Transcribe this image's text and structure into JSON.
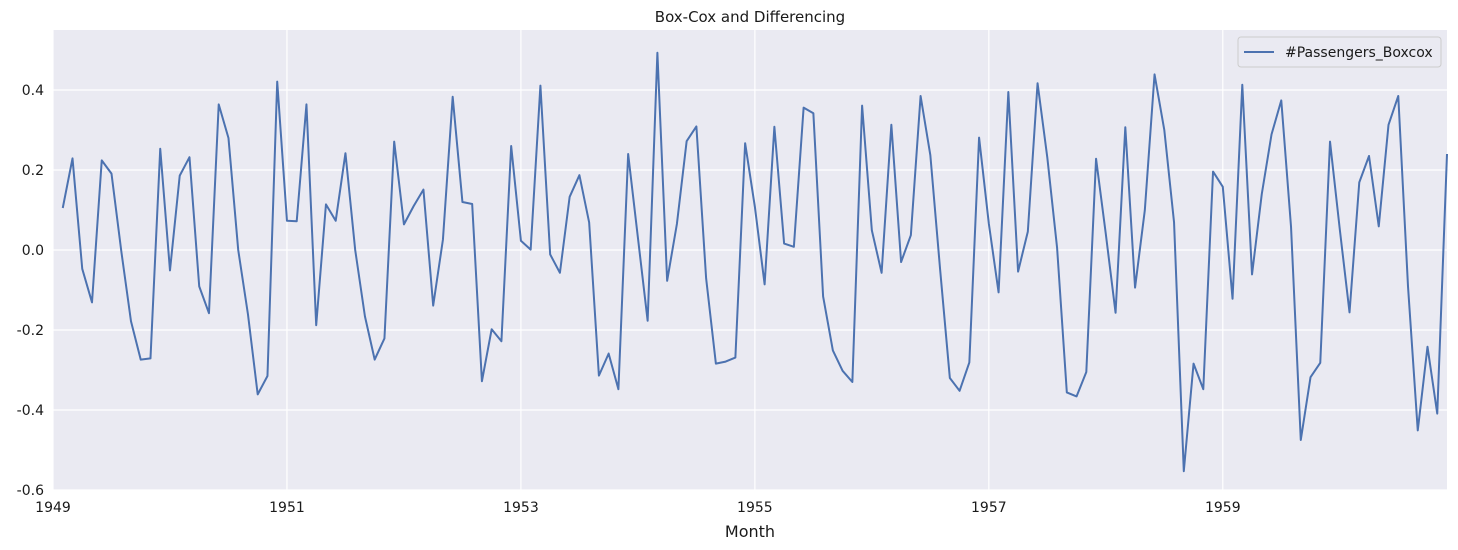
{
  "chart_data": {
    "type": "line",
    "title": "Box-Cox and Differencing",
    "xlabel": "Month",
    "ylabel": "",
    "xlim": [
      "1949-01",
      "1960-12"
    ],
    "ylim": [
      -0.6,
      0.55
    ],
    "xticks": [
      "1949",
      "1951",
      "1953",
      "1955",
      "1957",
      "1959"
    ],
    "yticks": [
      "-0.6",
      "-0.4",
      "-0.2",
      "0.0",
      "0.2",
      "0.4"
    ],
    "grid": true,
    "legend_position": "top-right",
    "series": [
      {
        "name": "#Passengers_Boxcox",
        "color": "#4c72b0",
        "x": [
          "1949-02",
          "1949-03",
          "1949-04",
          "1949-05",
          "1949-06",
          "1949-07",
          "1949-08",
          "1949-09",
          "1949-10",
          "1949-11",
          "1949-12",
          "1950-01",
          "1950-02",
          "1950-03",
          "1950-04",
          "1950-05",
          "1950-06",
          "1950-07",
          "1950-08",
          "1950-09",
          "1950-10",
          "1950-11",
          "1950-12",
          "1951-01",
          "1951-02",
          "1951-03",
          "1951-04",
          "1951-05",
          "1951-06",
          "1951-07",
          "1951-08",
          "1951-09",
          "1951-10",
          "1951-11",
          "1951-12",
          "1952-01",
          "1952-02",
          "1952-03",
          "1952-04",
          "1952-05",
          "1952-06",
          "1952-07",
          "1952-08",
          "1952-09",
          "1952-10",
          "1952-11",
          "1952-12",
          "1953-01",
          "1953-02",
          "1953-03",
          "1953-04",
          "1953-05",
          "1953-06",
          "1953-07",
          "1953-08",
          "1953-09",
          "1953-10",
          "1953-11",
          "1953-12",
          "1954-01",
          "1954-02",
          "1954-03",
          "1954-04",
          "1954-05",
          "1954-06",
          "1954-07",
          "1954-08",
          "1954-09",
          "1954-10",
          "1954-11",
          "1954-12",
          "1955-01",
          "1955-02",
          "1955-03",
          "1955-04",
          "1955-05",
          "1955-06",
          "1955-07",
          "1955-08",
          "1955-09",
          "1955-10",
          "1955-11",
          "1955-12",
          "1956-01",
          "1956-02",
          "1956-03",
          "1956-04",
          "1956-05",
          "1956-06",
          "1956-07",
          "1956-08",
          "1956-09",
          "1956-10",
          "1956-11",
          "1956-12",
          "1957-01",
          "1957-02",
          "1957-03",
          "1957-04",
          "1957-05",
          "1957-06",
          "1957-07",
          "1957-08",
          "1957-09",
          "1957-10",
          "1957-11",
          "1957-12",
          "1958-01",
          "1958-02",
          "1958-03",
          "1958-04",
          "1958-05",
          "1958-06",
          "1958-07",
          "1958-08",
          "1958-09",
          "1958-10",
          "1958-11",
          "1958-12",
          "1959-01",
          "1959-02",
          "1959-03",
          "1959-04",
          "1959-05",
          "1959-06",
          "1959-07",
          "1959-08",
          "1959-09",
          "1959-10",
          "1959-11",
          "1959-12",
          "1960-01",
          "1960-02",
          "1960-03",
          "1960-04",
          "1960-05",
          "1960-06",
          "1960-07",
          "1960-08",
          "1960-09",
          "1960-10",
          "1960-11",
          "1960-12"
        ],
        "values": [
          0.105,
          0.229,
          -0.047,
          -0.131,
          0.224,
          0.191,
          -0.002,
          -0.178,
          -0.274,
          -0.271,
          0.253,
          -0.051,
          0.186,
          0.232,
          -0.091,
          -0.158,
          0.364,
          0.28,
          0.0,
          -0.161,
          -0.361,
          -0.315,
          0.421,
          0.073,
          0.072,
          0.364,
          -0.188,
          0.114,
          0.073,
          0.242,
          0.0,
          -0.166,
          -0.274,
          -0.221,
          0.271,
          0.064,
          0.11,
          0.151,
          -0.139,
          0.026,
          0.383,
          0.12,
          0.115,
          -0.328,
          -0.198,
          -0.228,
          0.26,
          0.023,
          0.001,
          0.411,
          -0.011,
          -0.057,
          0.133,
          0.187,
          0.069,
          -0.314,
          -0.259,
          -0.348,
          0.24,
          0.031,
          -0.177,
          0.493,
          -0.077,
          0.065,
          0.272,
          0.309,
          -0.071,
          -0.284,
          -0.279,
          -0.269,
          0.267,
          0.108,
          -0.086,
          0.308,
          0.016,
          0.008,
          0.356,
          0.342,
          -0.116,
          -0.251,
          -0.302,
          -0.33,
          0.361,
          0.049,
          -0.057,
          0.313,
          -0.03,
          0.037,
          0.385,
          0.237,
          -0.048,
          -0.32,
          -0.352,
          -0.281,
          0.281,
          0.066,
          -0.106,
          0.395,
          -0.054,
          0.046,
          0.417,
          0.231,
          0.006,
          -0.356,
          -0.366,
          -0.305,
          0.228,
          0.04,
          -0.157,
          0.307,
          -0.094,
          0.099,
          0.439,
          0.3,
          0.069,
          -0.553,
          -0.284,
          -0.348,
          0.196,
          0.158,
          -0.122,
          0.413,
          -0.061,
          0.14,
          0.289,
          0.374,
          0.058,
          -0.475,
          -0.318,
          -0.282,
          0.271,
          0.052,
          -0.156,
          0.169,
          0.235,
          0.059,
          0.313,
          0.385,
          -0.091,
          -0.451,
          -0.242,
          -0.409,
          0.24
        ]
      }
    ]
  }
}
